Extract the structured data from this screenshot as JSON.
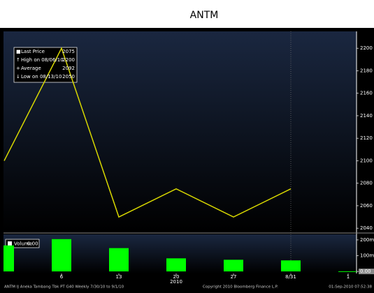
{
  "title": "ANTM",
  "chart_data": [
    {
      "type": "line",
      "color": "#d8d800",
      "values": [
        2100,
        2200,
        2050,
        2075,
        2050,
        2075,
        null
      ],
      "ylim": [
        2037,
        2215
      ],
      "yticks": [
        2040,
        2060,
        2080,
        2100,
        2120,
        2140,
        2160,
        2180,
        2200
      ],
      "legend": [
        {
          "name": "Last Price",
          "value": 2075
        },
        {
          "name": "High on 08/06/10",
          "value": 2200
        },
        {
          "name": "Average",
          "value": 2092
        },
        {
          "name": "Low on 08/13/10",
          "value": 2050
        }
      ]
    },
    {
      "type": "bar",
      "color": "#00ff00",
      "categories": [
        null,
        "6",
        "13",
        "20",
        "27",
        "8/31",
        "1"
      ],
      "x_sub_label": "2010",
      "values": [
        165000000,
        205000000,
        148000000,
        83000000,
        74000000,
        70000000,
        1000000
      ],
      "ylim": [
        -13000000,
        235000000
      ],
      "yticks": [
        {
          "value": 0,
          "label": "0.00"
        },
        {
          "value": 100000000,
          "label": "100m"
        },
        {
          "value": 200000000,
          "label": "200m"
        }
      ],
      "legend": {
        "name": "Volume",
        "value": "0.00"
      }
    }
  ],
  "footer": [
    "ANTM IJ Aneka Tambang Tbk PT   G40   Weekly 7/30/10 to 9/1/10",
    "Copyright 2010 Bloomberg Finance L.P.",
    "01-Sep-2010 07:52:38"
  ]
}
